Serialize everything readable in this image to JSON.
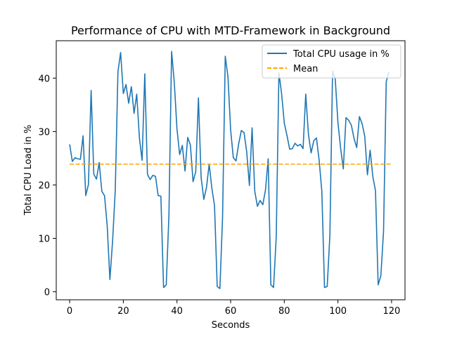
{
  "chart_data": {
    "type": "line",
    "title": "Performance of CPU with MTD-Framework in Background",
    "xlabel": "Seconds",
    "ylabel": "Total CPU Load in %",
    "xlim": [
      -5,
      125
    ],
    "ylim": [
      -1.5,
      47
    ],
    "xticks": [
      0,
      20,
      40,
      60,
      80,
      100,
      120
    ],
    "yticks": [
      0,
      10,
      20,
      30,
      40
    ],
    "grid": false,
    "legend_position": "top-right",
    "series": [
      {
        "name": "Total CPU usage in %",
        "color": "#1f77b4",
        "style": "solid",
        "x": [
          0,
          1,
          2,
          3,
          4,
          5,
          6,
          7,
          8,
          9,
          10,
          11,
          12,
          13,
          14,
          15,
          16,
          17,
          18,
          19,
          20,
          21,
          22,
          23,
          24,
          25,
          26,
          27,
          28,
          29,
          30,
          31,
          32,
          33,
          34,
          35,
          36,
          37,
          38,
          39,
          40,
          41,
          42,
          43,
          44,
          45,
          46,
          47,
          48,
          49,
          50,
          51,
          52,
          53,
          54,
          55,
          56,
          57,
          58,
          59,
          60,
          61,
          62,
          63,
          64,
          65,
          66,
          67,
          68,
          69,
          70,
          71,
          72,
          73,
          74,
          75,
          76,
          77,
          78,
          79,
          80,
          81,
          82,
          83,
          84,
          85,
          86,
          87,
          88,
          89,
          90,
          91,
          92,
          93,
          94,
          95,
          96,
          97,
          98,
          99,
          100,
          101,
          102,
          103,
          104,
          105,
          106,
          107,
          108,
          109,
          110,
          111,
          112,
          113,
          114,
          115,
          116,
          117,
          118,
          119
        ],
        "values": [
          27.6,
          24.4,
          25.1,
          24.9,
          24.8,
          29.2,
          18.0,
          20.1,
          37.7,
          22.0,
          21.1,
          24.2,
          18.8,
          18.0,
          12.3,
          2.3,
          9.5,
          19.0,
          41.2,
          44.8,
          37.1,
          38.8,
          35.3,
          38.4,
          33.4,
          37.0,
          28.8,
          24.6,
          40.8,
          22.0,
          21.0,
          21.8,
          21.6,
          18.0,
          17.9,
          0.8,
          1.3,
          14.3,
          45.0,
          39.2,
          30.5,
          25.7,
          27.4,
          22.6,
          28.9,
          27.5,
          20.6,
          22.5,
          36.3,
          21.4,
          17.3,
          19.5,
          23.9,
          19.4,
          16.1,
          1.0,
          0.6,
          14.0,
          44.1,
          40.3,
          30.3,
          25.1,
          24.5,
          27.7,
          30.2,
          29.8,
          26.2,
          19.9,
          30.7,
          18.8,
          16.0,
          17.1,
          16.3,
          19.1,
          24.9,
          1.3,
          0.8,
          10.2,
          41.0,
          37.1,
          31.6,
          29.3,
          26.7,
          26.8,
          27.8,
          27.3,
          27.6,
          26.8,
          37.0,
          29.5,
          26.0,
          28.3,
          28.8,
          24.6,
          18.8,
          0.8,
          1.0,
          10.6,
          41.3,
          39.8,
          31.7,
          26.9,
          23.0,
          32.6,
          32.1,
          31.2,
          28.7,
          27.0,
          32.8,
          31.5,
          29.1,
          21.9,
          26.5,
          21.6,
          18.9,
          1.3,
          3.0,
          11.3,
          39.3,
          41.2
        ]
      },
      {
        "name": "Mean",
        "color": "#ffa500",
        "style": "dashed",
        "x": [
          0,
          120
        ],
        "values": [
          23.9,
          23.9
        ]
      }
    ]
  }
}
